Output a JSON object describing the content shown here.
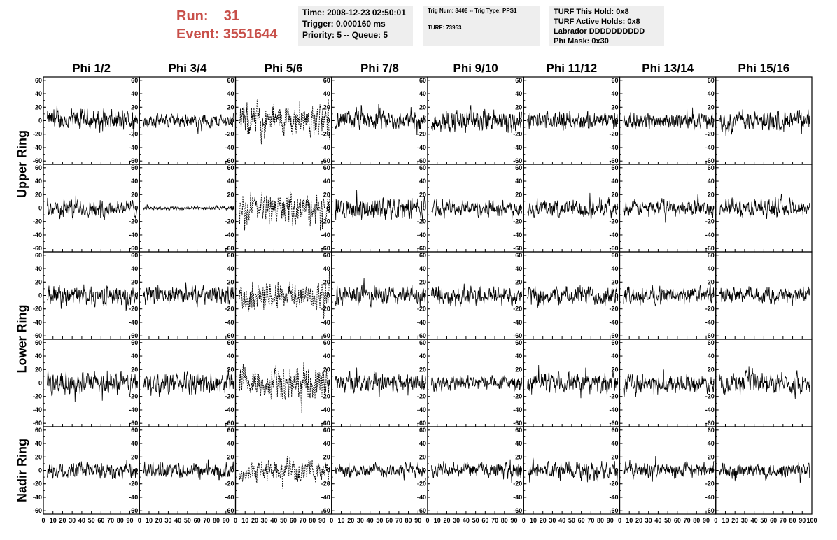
{
  "header": {
    "run_label": "Run:",
    "run_value": "31",
    "event_label": "Event:",
    "event_value": "3551644",
    "box1": [
      "Time: 2008-12-23 02:50:01",
      "Trigger: 0.000160 ms",
      "Priority: 5 -- Queue: 5"
    ],
    "box2": [
      "Trig Num: 8408 -- Trig Type: PPS1",
      "",
      "TURF: 73953"
    ],
    "box3": [
      "TURF This Hold: 0x8",
      "TURF Active Holds: 0x8",
      "Labrador DDDDDDDDDD",
      "Phi Mask: 0x30"
    ],
    "accent_color": "#c8504a",
    "box_color": "#eeeeee"
  },
  "columns": [
    "Phi 1/2",
    "Phi 3/4",
    "Phi 5/6",
    "Phi 7/8",
    "Phi 9/10",
    "Phi 11/12",
    "Phi 13/14",
    "Phi 15/16"
  ],
  "rings": [
    {
      "label": "Upper Ring",
      "rows": [
        0,
        1
      ]
    },
    {
      "label": "Lower Ring",
      "rows": [
        2,
        3
      ]
    },
    {
      "label": "Nadir Ring",
      "rows": [
        4
      ]
    }
  ],
  "chart_data": {
    "type": "line",
    "title": "",
    "xlabel": "",
    "ylabel": "",
    "xlim": [
      0,
      100
    ],
    "ylim": [
      -65,
      65
    ],
    "x_ticks": [
      0,
      10,
      20,
      30,
      40,
      50,
      60,
      70,
      80,
      90,
      100
    ],
    "x_tick_labels": [
      "0",
      "10",
      "20",
      "30",
      "40",
      "50",
      "60",
      "70",
      "80",
      "90",
      "100"
    ],
    "y_ticks": [
      -60,
      -40,
      -20,
      0,
      20,
      40,
      60
    ],
    "y_tick_labels": [
      "-60",
      "-40",
      "-20",
      "0",
      "20",
      "40",
      "60"
    ],
    "grid": false,
    "n_rows": 5,
    "n_cols": 8,
    "samples_per_trace": 260,
    "dashed_column": "Phi 5/6",
    "panel_amplitudes": [
      [
        22,
        14,
        32,
        20,
        24,
        18,
        16,
        20
      ],
      [
        18,
        4,
        30,
        22,
        16,
        18,
        16,
        18
      ],
      [
        20,
        18,
        30,
        20,
        20,
        20,
        18,
        16
      ],
      [
        22,
        22,
        32,
        20,
        16,
        20,
        18,
        20
      ],
      [
        18,
        16,
        20,
        14,
        16,
        18,
        16,
        16
      ]
    ]
  }
}
